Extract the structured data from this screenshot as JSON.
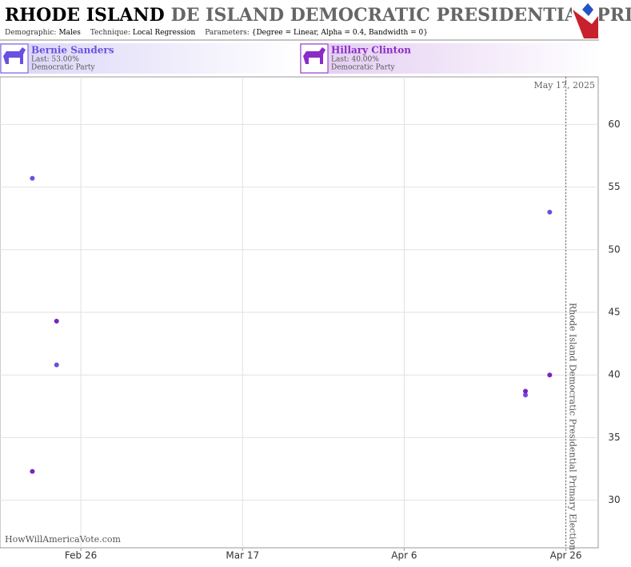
{
  "chart_data": {
    "type": "scatter",
    "title_bold": "RHODE ISLAND",
    "title_gray": "DE ISLAND DEMOCRATIC PRESIDENTIAL PRIMA",
    "params": [
      {
        "label": "Demographic:",
        "value": "Males"
      },
      {
        "label": "Technique:",
        "value": "Local Regression"
      },
      {
        "label": "Parameters:",
        "value": "{Degree = Linear, Alpha = 0.4, Bandwidth = 0}"
      }
    ],
    "candidates": [
      {
        "name": "Bernie Sanders",
        "last": "Last: 53.00%",
        "party": "Democratic Party",
        "color": "#6a50e0"
      },
      {
        "name": "Hillary Clinton",
        "last": "Last: 40.00%",
        "party": "Democratic Party",
        "color": "#8a2bc8"
      }
    ],
    "x": [
      "Feb 20",
      "Feb 23",
      "Apr 21",
      "Apr 24"
    ],
    "series": [
      {
        "name": "Bernie Sanders",
        "color": "#6a50e0",
        "values": [
          55.7,
          40.8,
          38.4,
          53.0
        ]
      },
      {
        "name": "Hillary Clinton",
        "color": "#7a22c4",
        "values": [
          32.3,
          44.3,
          38.7,
          40.0
        ]
      }
    ],
    "xlim": [
      "Feb 16",
      "Apr 30"
    ],
    "xticks": [
      "Feb 26",
      "Mar 17",
      "Apr 6",
      "Apr 26"
    ],
    "ylim": [
      26.2,
      63.8
    ],
    "yticks": [
      30,
      35,
      40,
      45,
      50,
      55,
      60
    ],
    "grid": true,
    "event": {
      "x": "Apr 26",
      "label": "Rhode Island Democratic Presidential Primary Election"
    },
    "date_label": "May 17, 2025",
    "watermark": "HowWillAmericaVote.com"
  }
}
